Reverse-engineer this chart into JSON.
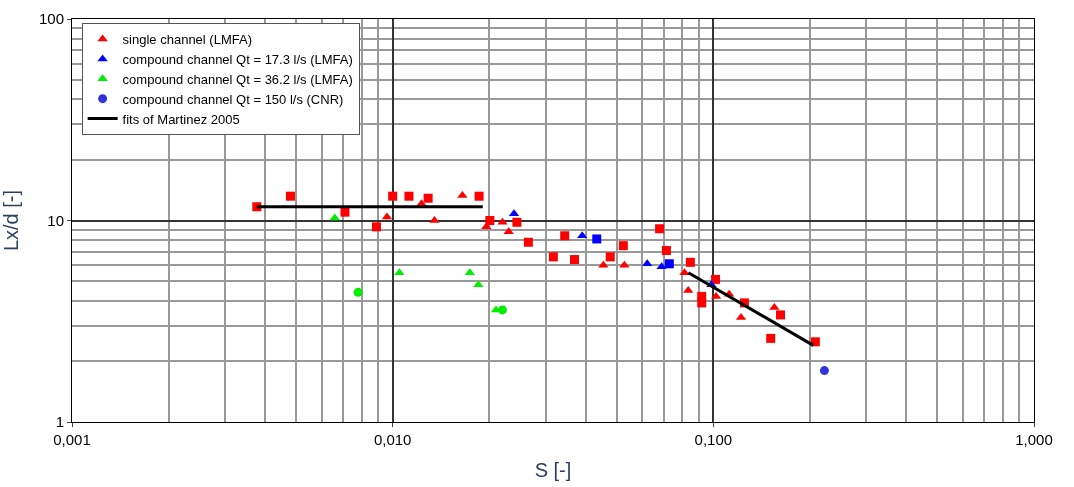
{
  "chart_data": {
    "type": "scatter",
    "xlabel": "S [-]",
    "ylabel": "Lx/d [-]",
    "log": "xy",
    "grid": true,
    "legend": "top left",
    "xlim": [
      0.001,
      1
    ],
    "ylim": [
      1,
      100
    ],
    "xticks": [
      {
        "value": 0.001,
        "label": "0,001"
      },
      {
        "value": 0.01,
        "label": "0,010"
      },
      {
        "value": 0.1,
        "label": "0,100"
      },
      {
        "value": 1,
        "label": "1,000"
      }
    ],
    "yticks": [
      1,
      10,
      100
    ],
    "series": [
      {
        "name": "single channel (LMFA)",
        "color": "#ff0000",
        "marker": "triangle",
        "x": [
          0.0096,
          0.0123,
          0.0135,
          0.0165,
          0.0196,
          0.022,
          0.023,
          0.0454,
          0.0528,
          0.0813,
          0.0835,
          0.102,
          0.112,
          0.122,
          0.155
        ],
        "values": [
          10.4,
          12.1,
          10.0,
          13.3,
          9.3,
          9.8,
          8.8,
          6.0,
          6.0,
          5.5,
          4.5,
          4.2,
          4.3,
          3.3,
          3.7
        ]
      },
      {
        "color": "#ff0000",
        "marker": "square",
        "x": [
          0.00377,
          0.0048,
          0.0071,
          0.0089,
          0.01,
          0.01124,
          0.0129,
          0.0186,
          0.0201,
          0.0244,
          0.0265,
          0.0317,
          0.0344,
          0.0369,
          0.0477,
          0.0524,
          0.068,
          0.0714,
          0.0848,
          0.1016,
          0.092,
          0.092,
          0.125,
          0.162,
          0.151,
          0.208
        ],
        "values": [
          11.7,
          13.2,
          11.0,
          9.3,
          13.2,
          13.2,
          12.9,
          13.2,
          10.0,
          9.8,
          7.8,
          6.6,
          8.4,
          6.4,
          6.6,
          7.5,
          9.1,
          7.1,
          6.2,
          5.1,
          4.2,
          3.9,
          3.9,
          3.4,
          2.6,
          2.5
        ]
      },
      {
        "name": "compound channel Qt = 17.3 l/s (LMFA)",
        "color": "#0000ff",
        "marker": "triangle",
        "x": [
          0.0239,
          0.039,
          0.0622,
          0.069,
          0.0986
        ],
        "values": [
          10.8,
          8.4,
          6.1,
          5.9,
          4.8
        ]
      },
      {
        "color": "#0000ff",
        "marker": "square",
        "x": [
          0.0433,
          0.0729
        ],
        "values": [
          8.1,
          6.1
        ]
      },
      {
        "name": "compound channel Qt = 36.2 l/s (LMFA)",
        "color": "#00ee00",
        "marker": "triangle",
        "x": [
          0.0066,
          0.0105,
          0.0174,
          0.0185,
          0.021
        ],
        "values": [
          10.3,
          5.5,
          5.5,
          4.8,
          3.6
        ]
      },
      {
        "color": "#00ee00",
        "marker": "circle",
        "x": [
          0.0078,
          0.022
        ],
        "values": [
          4.4,
          3.6
        ]
      },
      {
        "name": "compound channel Qt = 150 l/s (CNR)",
        "color": "#3333dd",
        "marker": "circle",
        "x": [
          0.222
        ],
        "values": [
          1.8
        ]
      },
      {
        "name": "fits of Martinez 2005",
        "type": "line",
        "color": "#000000",
        "marker": "none",
        "x": [
          0.00377,
          0.0191
        ],
        "values": [
          11.7,
          11.7
        ]
      },
      {
        "type": "line",
        "color": "#000000",
        "marker": "none",
        "x": [
          0.0836,
          0.205
        ],
        "values": [
          5.5,
          2.4
        ]
      }
    ]
  }
}
